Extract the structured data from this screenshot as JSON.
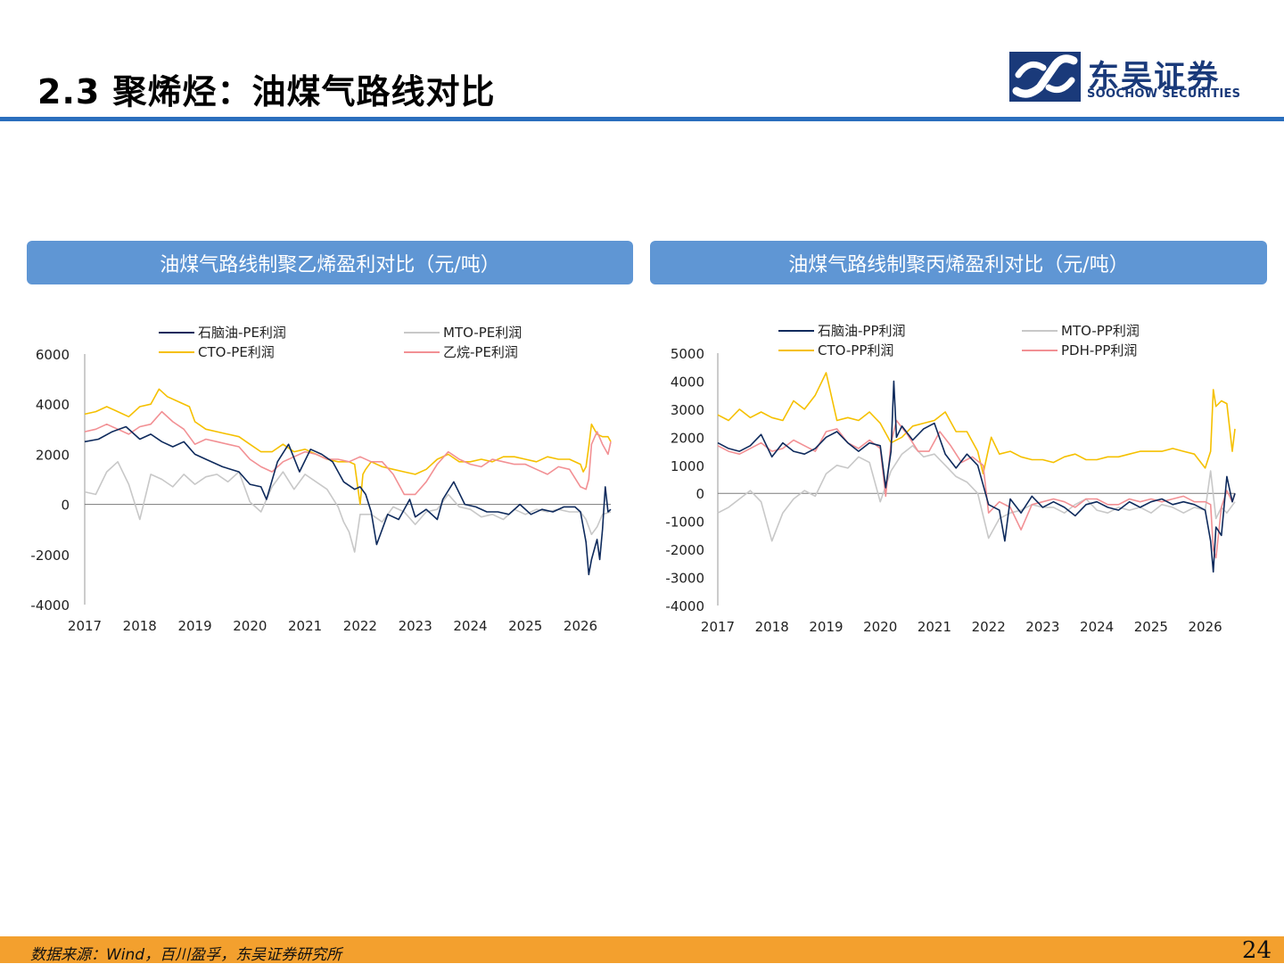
{
  "title": "2.3 聚烯烃：油煤气路线对比",
  "logo": {
    "cn": "东吴证券",
    "en": "SOOCHOW SECURITIES"
  },
  "footer": {
    "source": "数据来源：Wind，百川盈孚，东吴证券研究所",
    "page": "24"
  },
  "colors": {
    "navy": "#0e2a5c",
    "gray": "#c8c8c8",
    "gold": "#f5c000",
    "pink": "#f29094",
    "accent": "#5f96d4",
    "rule": "#2a6ebd",
    "footer": "#f3a02e"
  },
  "chart_data": [
    {
      "type": "line",
      "title": "油煤气路线制聚乙烯盈利对比（元/吨）",
      "legend": [
        "石脑油-PE利润",
        "MTO-PE利润",
        "CTO-PE利润",
        "乙烷-PE利润"
      ],
      "x_ticks": [
        "2017",
        "2018",
        "2019",
        "2020",
        "2021",
        "2022",
        "2023",
        "2024",
        "2025",
        "2026"
      ],
      "y_ticks": [
        "6000",
        "4000",
        "2000",
        "0",
        "-2000",
        "-4000"
      ],
      "ylim": [
        -4000,
        6000
      ],
      "xlim": [
        2017.0,
        2026.55
      ],
      "series": [
        {
          "name": "石脑油-PE利润",
          "color": "#0e2a5c",
          "x": [
            2017.0,
            2017.25,
            2017.5,
            2017.75,
            2018.0,
            2018.2,
            2018.4,
            2018.6,
            2018.8,
            2019.0,
            2019.2,
            2019.5,
            2019.8,
            2020.0,
            2020.2,
            2020.3,
            2020.5,
            2020.7,
            2020.9,
            2021.1,
            2021.3,
            2021.5,
            2021.7,
            2021.9,
            2022.0,
            2022.1,
            2022.2,
            2022.3,
            2022.5,
            2022.7,
            2022.9,
            2023.0,
            2023.2,
            2023.4,
            2023.5,
            2023.7,
            2023.9,
            2024.1,
            2024.3,
            2024.5,
            2024.7,
            2024.9,
            2025.1,
            2025.3,
            2025.5,
            2025.7,
            2025.9,
            2026.0,
            2026.1,
            2026.15,
            2026.2,
            2026.3,
            2026.35,
            2026.4,
            2026.45,
            2026.5,
            2026.55
          ],
          "y": [
            2500,
            2600,
            2900,
            3100,
            2600,
            2800,
            2500,
            2300,
            2500,
            2000,
            1800,
            1500,
            1300,
            800,
            700,
            200,
            1700,
            2400,
            1300,
            2200,
            2000,
            1700,
            900,
            600,
            700,
            400,
            -300,
            -1600,
            -400,
            -600,
            200,
            -500,
            -200,
            -600,
            200,
            900,
            0,
            -100,
            -300,
            -300,
            -400,
            0,
            -400,
            -200,
            -300,
            -100,
            -100,
            -300,
            -1500,
            -2800,
            -2200,
            -1400,
            -2200,
            -1000,
            700,
            -300,
            -200
          ]
        },
        {
          "name": "MTO-PE利润",
          "color": "#c8c8c8",
          "x": [
            2017.0,
            2017.2,
            2017.4,
            2017.6,
            2017.8,
            2018.0,
            2018.2,
            2018.4,
            2018.6,
            2018.8,
            2019.0,
            2019.2,
            2019.4,
            2019.6,
            2019.8,
            2020.0,
            2020.2,
            2020.4,
            2020.6,
            2020.8,
            2021.0,
            2021.2,
            2021.4,
            2021.6,
            2021.7,
            2021.8,
            2021.9,
            2022.0,
            2022.2,
            2022.4,
            2022.6,
            2022.8,
            2023.0,
            2023.2,
            2023.4,
            2023.6,
            2023.8,
            2024.0,
            2024.2,
            2024.4,
            2024.6,
            2024.8,
            2025.0,
            2025.2,
            2025.4,
            2025.6,
            2025.8,
            2026.0,
            2026.1,
            2026.2,
            2026.3,
            2026.4,
            2026.55
          ],
          "y": [
            500,
            400,
            1300,
            1700,
            800,
            -600,
            1200,
            1000,
            700,
            1200,
            800,
            1100,
            1200,
            900,
            1300,
            100,
            -300,
            700,
            1300,
            600,
            1200,
            900,
            600,
            -100,
            -700,
            -1100,
            -1900,
            -400,
            -400,
            -700,
            -100,
            -300,
            -800,
            -300,
            -200,
            400,
            -100,
            -200,
            -500,
            -400,
            -600,
            -200,
            -400,
            -200,
            -300,
            -200,
            -300,
            -300,
            -600,
            -1200,
            -900,
            -400,
            -300
          ]
        },
        {
          "name": "CTO-PE利润",
          "color": "#f5c000",
          "x": [
            2017.0,
            2017.2,
            2017.4,
            2017.6,
            2017.8,
            2018.0,
            2018.2,
            2018.35,
            2018.5,
            2018.7,
            2018.9,
            2019.0,
            2019.2,
            2019.4,
            2019.6,
            2019.8,
            2020.0,
            2020.2,
            2020.4,
            2020.6,
            2020.8,
            2021.0,
            2021.2,
            2021.4,
            2021.6,
            2021.8,
            2021.9,
            2022.0,
            2022.05,
            2022.1,
            2022.2,
            2022.4,
            2022.6,
            2022.8,
            2023.0,
            2023.2,
            2023.4,
            2023.6,
            2023.8,
            2024.0,
            2024.2,
            2024.4,
            2024.6,
            2024.8,
            2025.0,
            2025.2,
            2025.4,
            2025.6,
            2025.8,
            2026.0,
            2026.05,
            2026.1,
            2026.15,
            2026.2,
            2026.3,
            2026.4,
            2026.5,
            2026.55
          ],
          "y": [
            3600,
            3700,
            3900,
            3700,
            3500,
            3900,
            4000,
            4600,
            4300,
            4100,
            3900,
            3300,
            3000,
            2900,
            2800,
            2700,
            2400,
            2100,
            2100,
            2400,
            2100,
            2200,
            2000,
            1800,
            1700,
            1700,
            1600,
            0,
            1200,
            1400,
            1700,
            1500,
            1400,
            1300,
            1200,
            1400,
            1800,
            2000,
            1700,
            1700,
            1800,
            1700,
            1900,
            1900,
            1800,
            1700,
            1900,
            1800,
            1800,
            1600,
            1300,
            1500,
            2300,
            3200,
            2800,
            2700,
            2700,
            2500
          ]
        },
        {
          "name": "乙烷-PE利润",
          "color": "#f29094",
          "x": [
            2017.0,
            2017.2,
            2017.4,
            2017.6,
            2017.8,
            2018.0,
            2018.2,
            2018.4,
            2018.6,
            2018.8,
            2019.0,
            2019.2,
            2019.4,
            2019.6,
            2019.8,
            2020.0,
            2020.2,
            2020.4,
            2020.6,
            2020.8,
            2021.0,
            2021.2,
            2021.4,
            2021.6,
            2021.8,
            2022.0,
            2022.2,
            2022.4,
            2022.6,
            2022.8,
            2023.0,
            2023.2,
            2023.4,
            2023.6,
            2023.8,
            2024.0,
            2024.2,
            2024.4,
            2024.6,
            2024.8,
            2025.0,
            2025.2,
            2025.4,
            2025.6,
            2025.8,
            2026.0,
            2026.1,
            2026.15,
            2026.2,
            2026.3,
            2026.4,
            2026.5,
            2026.55
          ],
          "y": [
            2900,
            3000,
            3200,
            3000,
            2800,
            3100,
            3200,
            3700,
            3300,
            3000,
            2400,
            2600,
            2500,
            2400,
            2300,
            1800,
            1500,
            1300,
            1700,
            1900,
            2100,
            2000,
            1800,
            1800,
            1700,
            1900,
            1700,
            1700,
            1200,
            400,
            400,
            900,
            1600,
            2100,
            1800,
            1600,
            1500,
            1800,
            1700,
            1600,
            1600,
            1400,
            1200,
            1500,
            1400,
            700,
            600,
            1000,
            2400,
            2900,
            2400,
            2000,
            2500
          ]
        }
      ]
    },
    {
      "type": "line",
      "title": "油煤气路线制聚丙烯盈利对比（元/吨）",
      "legend": [
        "石脑油-PP利润",
        "MTO-PP利润",
        "CTO-PP利润",
        "PDH-PP利润"
      ],
      "x_ticks": [
        "2017",
        "2018",
        "2019",
        "2020",
        "2021",
        "2022",
        "2023",
        "2024",
        "2025",
        "2026"
      ],
      "y_ticks": [
        "5000",
        "4000",
        "3000",
        "2000",
        "1000",
        "0",
        "-1000",
        "-2000",
        "-3000",
        "-4000"
      ],
      "ylim": [
        -4000,
        5000
      ],
      "xlim": [
        2017.0,
        2026.55
      ],
      "series": [
        {
          "name": "石脑油-PP利润",
          "color": "#0e2a5c",
          "x": [
            2017.0,
            2017.2,
            2017.4,
            2017.6,
            2017.8,
            2018.0,
            2018.2,
            2018.4,
            2018.6,
            2018.8,
            2019.0,
            2019.2,
            2019.4,
            2019.6,
            2019.8,
            2020.0,
            2020.1,
            2020.2,
            2020.25,
            2020.3,
            2020.4,
            2020.6,
            2020.8,
            2021.0,
            2021.2,
            2021.4,
            2021.6,
            2021.8,
            2022.0,
            2022.2,
            2022.3,
            2022.4,
            2022.6,
            2022.8,
            2023.0,
            2023.2,
            2023.4,
            2023.6,
            2023.8,
            2024.0,
            2024.2,
            2024.4,
            2024.6,
            2024.8,
            2025.0,
            2025.2,
            2025.4,
            2025.6,
            2025.8,
            2026.0,
            2026.1,
            2026.15,
            2026.2,
            2026.3,
            2026.4,
            2026.5,
            2026.55
          ],
          "y": [
            1800,
            1600,
            1500,
            1700,
            2100,
            1300,
            1800,
            1500,
            1400,
            1600,
            2000,
            2200,
            1800,
            1500,
            1800,
            1700,
            200,
            1500,
            4000,
            2000,
            2400,
            1900,
            2300,
            2500,
            1400,
            900,
            1400,
            1000,
            -400,
            -600,
            -1700,
            -200,
            -700,
            -100,
            -500,
            -300,
            -500,
            -800,
            -400,
            -300,
            -500,
            -600,
            -300,
            -500,
            -300,
            -200,
            -400,
            -300,
            -400,
            -600,
            -1700,
            -2800,
            -1200,
            -1500,
            600,
            -300,
            0
          ]
        },
        {
          "name": "MTO-PP利润",
          "color": "#c8c8c8",
          "x": [
            2017.0,
            2017.2,
            2017.4,
            2017.6,
            2017.8,
            2018.0,
            2018.2,
            2018.4,
            2018.6,
            2018.8,
            2019.0,
            2019.2,
            2019.4,
            2019.6,
            2019.8,
            2020.0,
            2020.2,
            2020.4,
            2020.6,
            2020.8,
            2021.0,
            2021.2,
            2021.4,
            2021.6,
            2021.8,
            2022.0,
            2022.2,
            2022.4,
            2022.6,
            2022.8,
            2023.0,
            2023.2,
            2023.4,
            2023.6,
            2023.8,
            2024.0,
            2024.2,
            2024.4,
            2024.6,
            2024.8,
            2025.0,
            2025.2,
            2025.4,
            2025.6,
            2025.8,
            2026.0,
            2026.1,
            2026.2,
            2026.3,
            2026.4,
            2026.55
          ],
          "y": [
            -700,
            -500,
            -200,
            100,
            -300,
            -1700,
            -700,
            -200,
            100,
            -100,
            700,
            1000,
            900,
            1300,
            1100,
            -300,
            800,
            1400,
            1700,
            1300,
            1400,
            1000,
            600,
            400,
            0,
            -1600,
            -900,
            -700,
            -600,
            -400,
            -500,
            -500,
            -700,
            -400,
            -200,
            -600,
            -700,
            -500,
            -600,
            -500,
            -700,
            -400,
            -500,
            -700,
            -500,
            -600,
            800,
            -900,
            -500,
            -700,
            -300
          ]
        },
        {
          "name": "CTO-PP利润",
          "color": "#f5c000",
          "x": [
            2017.0,
            2017.2,
            2017.4,
            2017.6,
            2017.8,
            2018.0,
            2018.2,
            2018.4,
            2018.6,
            2018.8,
            2019.0,
            2019.2,
            2019.4,
            2019.6,
            2019.8,
            2020.0,
            2020.2,
            2020.4,
            2020.6,
            2020.8,
            2021.0,
            2021.2,
            2021.4,
            2021.6,
            2021.8,
            2021.9,
            2022.0,
            2022.05,
            2022.2,
            2022.4,
            2022.6,
            2022.8,
            2023.0,
            2023.2,
            2023.4,
            2023.6,
            2023.8,
            2024.0,
            2024.2,
            2024.4,
            2024.6,
            2024.8,
            2025.0,
            2025.2,
            2025.4,
            2025.6,
            2025.8,
            2026.0,
            2026.1,
            2026.15,
            2026.2,
            2026.3,
            2026.4,
            2026.5,
            2026.55
          ],
          "y": [
            2800,
            2600,
            3000,
            2700,
            2900,
            2700,
            2600,
            3300,
            3000,
            3500,
            4300,
            2600,
            2700,
            2600,
            2900,
            2500,
            1800,
            2000,
            2400,
            2500,
            2600,
            2900,
            2200,
            2200,
            1500,
            700,
            1600,
            2000,
            1400,
            1500,
            1300,
            1200,
            1200,
            1100,
            1300,
            1400,
            1200,
            1200,
            1300,
            1300,
            1400,
            1500,
            1500,
            1500,
            1600,
            1500,
            1400,
            900,
            1500,
            3700,
            3100,
            3300,
            3200,
            1500,
            2300
          ]
        },
        {
          "name": "PDH-PP利润",
          "color": "#f29094",
          "x": [
            2017.0,
            2017.2,
            2017.4,
            2017.6,
            2017.8,
            2018.0,
            2018.2,
            2018.4,
            2018.6,
            2018.8,
            2019.0,
            2019.2,
            2019.4,
            2019.6,
            2019.8,
            2020.0,
            2020.1,
            2020.2,
            2020.3,
            2020.5,
            2020.7,
            2020.9,
            2021.1,
            2021.3,
            2021.5,
            2021.7,
            2021.9,
            2022.0,
            2022.2,
            2022.4,
            2022.6,
            2022.8,
            2023.0,
            2023.2,
            2023.4,
            2023.6,
            2023.8,
            2024.0,
            2024.2,
            2024.4,
            2024.6,
            2024.8,
            2025.0,
            2025.2,
            2025.4,
            2025.6,
            2025.8,
            2026.0,
            2026.1,
            2026.15,
            2026.2,
            2026.3,
            2026.4,
            2026.5,
            2026.55
          ],
          "y": [
            1700,
            1500,
            1400,
            1600,
            1800,
            1500,
            1600,
            1900,
            1700,
            1500,
            2200,
            2300,
            1800,
            1600,
            1900,
            1600,
            -100,
            1800,
            2600,
            2100,
            1500,
            1500,
            2200,
            1700,
            1100,
            1300,
            1000,
            -700,
            -300,
            -500,
            -1300,
            -400,
            -300,
            -200,
            -300,
            -500,
            -200,
            -200,
            -400,
            -400,
            -200,
            -300,
            -200,
            -300,
            -200,
            -100,
            -300,
            -300,
            -400,
            -2000,
            -2300,
            -500,
            100,
            -300,
            0
          ]
        }
      ]
    }
  ]
}
